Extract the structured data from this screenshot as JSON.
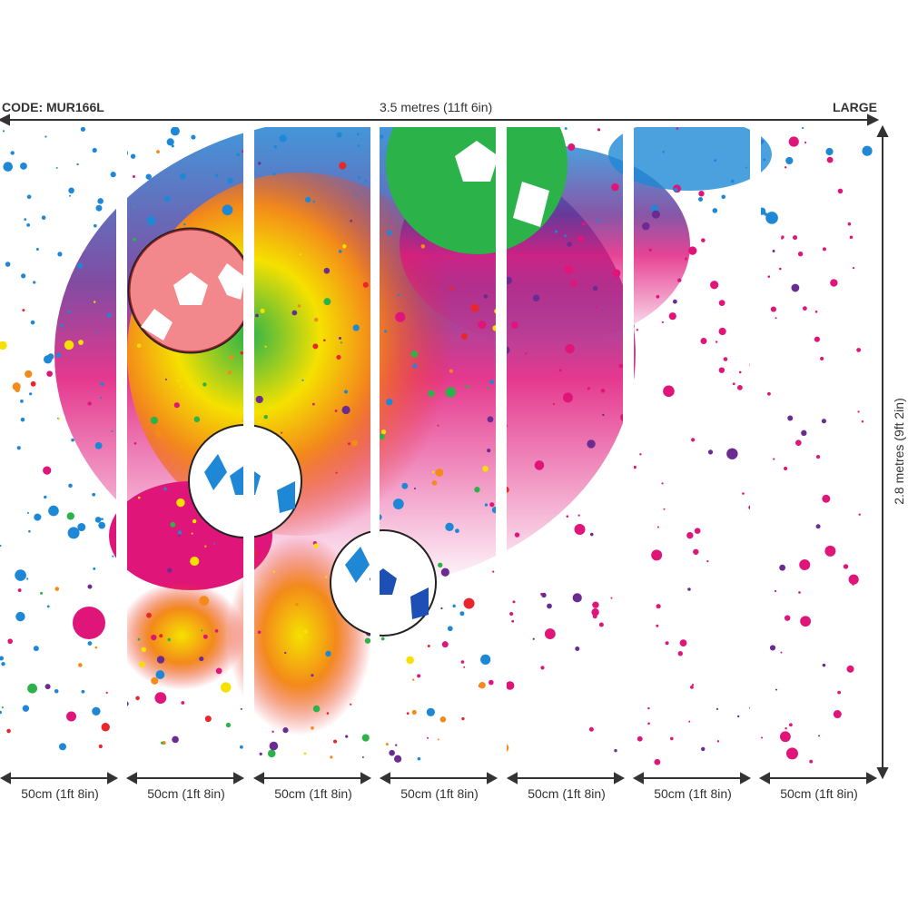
{
  "header": {
    "code": "CODE: MUR166L",
    "width": "3.5 metres (11ft 6in)",
    "size": "LARGE"
  },
  "height_label": "2.8 metres (9ft 2in)",
  "panels": [
    {
      "label": "50cm (1ft 8in)"
    },
    {
      "label": "50cm (1ft 8in)"
    },
    {
      "label": "50cm (1ft 8in)"
    },
    {
      "label": "50cm (1ft 8in)"
    },
    {
      "label": "50cm (1ft 8in)"
    },
    {
      "label": "50cm (1ft 8in)"
    },
    {
      "label": "50cm (1ft 8in)"
    }
  ],
  "colors": {
    "line": "#333333",
    "blue": "#1e88d6",
    "magenta": "#e0157a",
    "green": "#2bb34a",
    "yellow": "#f5e100",
    "red": "#e8262b",
    "orange": "#f38a1a",
    "purple": "#6a2c91"
  }
}
